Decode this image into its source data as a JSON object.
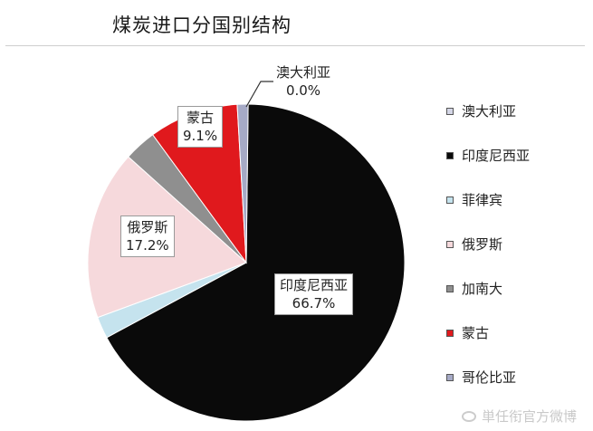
{
  "title": "煤炭进口分国别结构",
  "chart_data": {
    "type": "pie",
    "title": "煤炭进口分国别结构",
    "legend_position": "right",
    "slices": [
      {
        "label": "澳大利亚",
        "value": 0.0,
        "value_label": "0.0%",
        "color": "#d4d6e6"
      },
      {
        "label": "印度尼西亚",
        "value": 66.7,
        "value_label": "66.7%",
        "color": "#0a0a0a"
      },
      {
        "label": "菲律宾",
        "value": 2.2,
        "value_label": "",
        "color": "#c5e3ee"
      },
      {
        "label": "俄罗斯",
        "value": 17.2,
        "value_label": "17.2%",
        "color": "#f6d9dc"
      },
      {
        "label": "加南大",
        "value": 3.3,
        "value_label": "",
        "color": "#8f8f8f"
      },
      {
        "label": "蒙古",
        "value": 9.1,
        "value_label": "9.1%",
        "color": "#e0191d"
      },
      {
        "label": "哥伦比亚",
        "value": 1.1,
        "value_label": "",
        "color": "#a6aac6"
      }
    ]
  },
  "watermark": "単任衔官方微博"
}
